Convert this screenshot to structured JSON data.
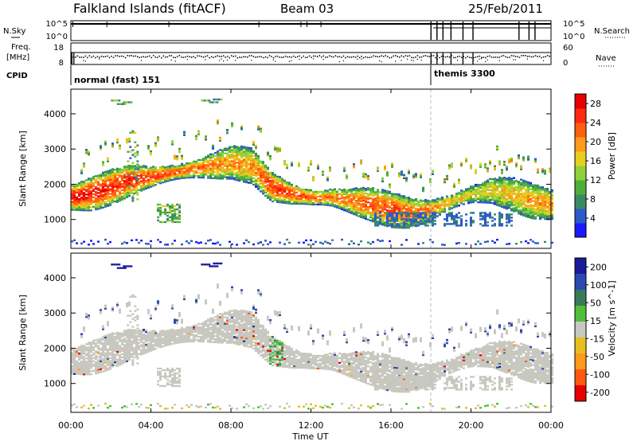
{
  "header": {
    "station": "Falkland Islands (fitACF)",
    "beam": "Beam 03",
    "date": "25/Feb/2011"
  },
  "strip_panels": {
    "nsky_label": "N.Sky",
    "nsky_ticks": [
      "10^5",
      "10^0"
    ],
    "nsearch_label": "N.Search",
    "nsearch_ticks": [
      "10^5",
      "10^0"
    ],
    "freq_label_1": "Freq.",
    "freq_label_2": "[MHz]",
    "freq_ticks": [
      "18",
      "8"
    ],
    "nave_label": "Nave",
    "nave_ticks": [
      "60",
      "0"
    ],
    "cpid_label": "CPID",
    "cpid_modes": [
      {
        "name": "normal (fast) 151",
        "start_hour": 0
      },
      {
        "name": "themis 3300",
        "start_hour": 18.0
      }
    ]
  },
  "colors": {
    "power_scale": [
      "#1a1aff",
      "#2d5ac8",
      "#3a8a64",
      "#4caf3a",
      "#8fd13a",
      "#e6cf20",
      "#ff9a1a",
      "#ff6010",
      "#ff2a10",
      "#e60000"
    ],
    "velocity_scale": [
      "#1a1a9a",
      "#2a4ab0",
      "#3a7a5a",
      "#4fbf3a",
      "#c8c8c0",
      "#e6c020",
      "#ff9a1a",
      "#ff5a10",
      "#e60000"
    ],
    "frame": "#000000"
  },
  "chart_data": [
    {
      "type": "heatmap",
      "name": "power",
      "title": "",
      "xlabel": "Time UT",
      "ylabel": "Slant Range [km]",
      "x_ticks": [
        "00:00",
        "04:00",
        "08:00",
        "12:00",
        "16:00",
        "20:00",
        "00:00"
      ],
      "xlim_hours": [
        0,
        24
      ],
      "y_ticks": [
        1000,
        2000,
        3000,
        4000
      ],
      "ylim": [
        180,
        4700
      ],
      "colorbar_label": "Power [dB]",
      "colorbar_ticks": [
        4,
        8,
        12,
        16,
        20,
        24,
        28
      ],
      "colorbar_range": [
        0,
        30
      ],
      "main_band": {
        "hours": [
          0,
          1,
          2,
          3,
          4,
          5,
          6,
          7,
          8,
          9,
          10,
          11,
          12,
          13,
          14,
          15,
          16,
          17,
          18,
          19,
          20,
          21,
          22,
          23,
          24
        ],
        "center_km": [
          1600,
          1700,
          1900,
          2100,
          2200,
          2300,
          2400,
          2500,
          2600,
          2500,
          1900,
          1700,
          1600,
          1600,
          1500,
          1400,
          1250,
          1150,
          1250,
          1500,
          1700,
          1800,
          1700,
          1500,
          1400
        ],
        "peak_db": [
          27,
          26,
          25,
          26,
          24,
          23,
          22,
          21,
          20,
          20,
          25,
          24,
          22,
          21,
          22,
          23,
          24,
          22,
          20,
          18,
          16,
          17,
          18,
          19,
          20
        ]
      }
    },
    {
      "type": "heatmap",
      "name": "velocity",
      "title": "",
      "xlabel": "Time UT",
      "ylabel": "Slant Range [km]",
      "x_ticks": [
        "00:00",
        "04:00",
        "08:00",
        "12:00",
        "16:00",
        "20:00",
        "00:00"
      ],
      "xlim_hours": [
        0,
        24
      ],
      "y_ticks": [
        1000,
        2000,
        3000,
        4000
      ],
      "ylim": [
        180,
        4700
      ],
      "colorbar_label": "Velocity [m s^-1]",
      "colorbar_ticks": [
        200,
        100,
        50,
        15,
        -15,
        -50,
        -100,
        -200
      ],
      "colorbar_range": [
        -250,
        250
      ],
      "dominant_value_mps": 0
    }
  ]
}
